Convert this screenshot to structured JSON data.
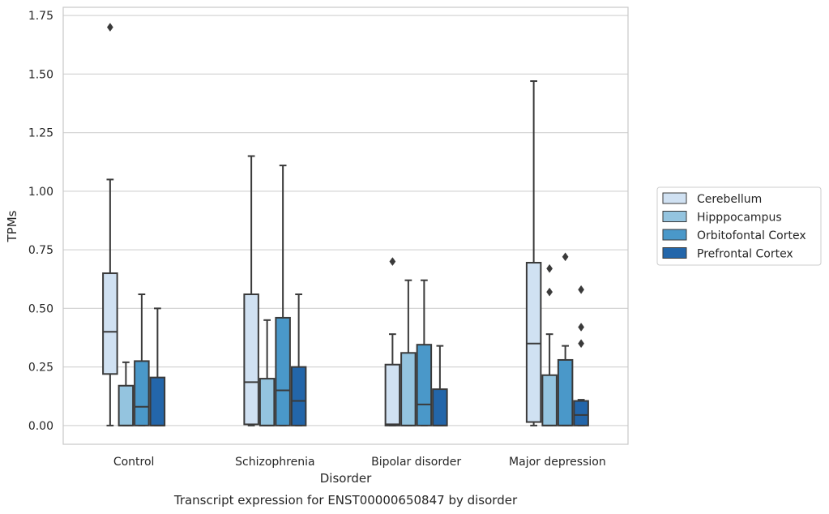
{
  "chart_data": {
    "type": "box",
    "title": "Transcript expression for ENST00000650847 by disorder",
    "xlabel": "Disorder",
    "ylabel": "TPMs",
    "ylim": [
      -0.08,
      1.785
    ],
    "yticks": [
      0.0,
      0.25,
      0.5,
      0.75,
      1.0,
      1.25,
      1.5,
      1.75
    ],
    "ytick_labels": [
      "0.00",
      "0.25",
      "0.50",
      "0.75",
      "1.00",
      "1.25",
      "1.50",
      "1.75"
    ],
    "grid": "horizontal",
    "legend_position": "right",
    "categories": [
      "Control",
      "Schizophrenia",
      "Bipolar disorder",
      "Major depression"
    ],
    "series": [
      {
        "name": "Cerebellum",
        "color": "#d0e1f2",
        "boxes": [
          {
            "whisker_low": 0.0,
            "q1": 0.22,
            "median": 0.4,
            "q3": 0.65,
            "whisker_high": 1.05,
            "outliers": [
              1.7
            ]
          },
          {
            "whisker_low": 0.0,
            "q1": 0.005,
            "median": 0.185,
            "q3": 0.56,
            "whisker_high": 1.15,
            "outliers": []
          },
          {
            "whisker_low": 0.0,
            "q1": 0.0,
            "median": 0.005,
            "q3": 0.26,
            "whisker_high": 0.39,
            "outliers": [
              0.7
            ]
          },
          {
            "whisker_low": 0.0,
            "q1": 0.015,
            "median": 0.35,
            "q3": 0.695,
            "whisker_high": 1.47,
            "outliers": []
          }
        ]
      },
      {
        "name": "Hipppocampus",
        "color": "#94c4df",
        "boxes": [
          {
            "whisker_low": 0.0,
            "q1": 0.0,
            "median": 0.0,
            "q3": 0.17,
            "whisker_high": 0.27,
            "outliers": []
          },
          {
            "whisker_low": 0.0,
            "q1": 0.0,
            "median": 0.0,
            "q3": 0.2,
            "whisker_high": 0.45,
            "outliers": []
          },
          {
            "whisker_low": 0.0,
            "q1": 0.0,
            "median": 0.0,
            "q3": 0.31,
            "whisker_high": 0.62,
            "outliers": []
          },
          {
            "whisker_low": 0.0,
            "q1": 0.0,
            "median": 0.0,
            "q3": 0.215,
            "whisker_high": 0.39,
            "outliers": [
              0.57,
              0.67
            ]
          }
        ]
      },
      {
        "name": "Orbitofontal Cortex",
        "color": "#4a98c9",
        "boxes": [
          {
            "whisker_low": 0.0,
            "q1": 0.0,
            "median": 0.08,
            "q3": 0.275,
            "whisker_high": 0.56,
            "outliers": []
          },
          {
            "whisker_low": 0.0,
            "q1": 0.0,
            "median": 0.15,
            "q3": 0.46,
            "whisker_high": 1.11,
            "outliers": []
          },
          {
            "whisker_low": 0.0,
            "q1": 0.0,
            "median": 0.09,
            "q3": 0.345,
            "whisker_high": 0.62,
            "outliers": []
          },
          {
            "whisker_low": 0.0,
            "q1": 0.0,
            "median": 0.0,
            "q3": 0.28,
            "whisker_high": 0.34,
            "outliers": [
              0.72
            ]
          }
        ]
      },
      {
        "name": "Prefrontal Cortex",
        "color": "#2366aa",
        "boxes": [
          {
            "whisker_low": 0.0,
            "q1": 0.0,
            "median": 0.0,
            "q3": 0.205,
            "whisker_high": 0.5,
            "outliers": []
          },
          {
            "whisker_low": 0.0,
            "q1": 0.0,
            "median": 0.105,
            "q3": 0.25,
            "whisker_high": 0.56,
            "outliers": []
          },
          {
            "whisker_low": 0.0,
            "q1": 0.0,
            "median": 0.0,
            "q3": 0.155,
            "whisker_high": 0.34,
            "outliers": []
          },
          {
            "whisker_low": 0.0,
            "q1": 0.0,
            "median": 0.045,
            "q3": 0.105,
            "whisker_high": 0.11,
            "outliers": [
              0.35,
              0.42,
              0.58
            ]
          }
        ]
      }
    ]
  },
  "colors": {
    "grid": "#d5d5d5",
    "frame": "#c8c8c8",
    "box_edge": "#3a3a3a"
  }
}
